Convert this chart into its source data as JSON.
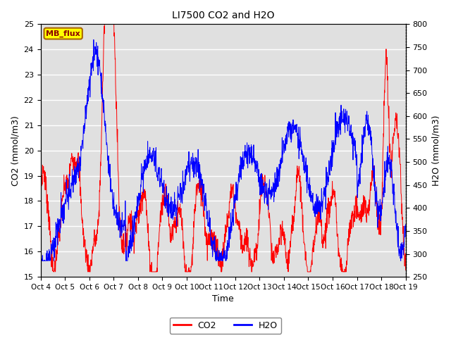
{
  "title": "LI7500 CO2 and H2O",
  "xlabel": "Time",
  "ylabel_left": "CO2 (mmol/m3)",
  "ylabel_right": "H2O (mmol/m3)",
  "co2_ylim": [
    15.0,
    25.0
  ],
  "h2o_ylim": [
    250,
    800
  ],
  "co2_yticks": [
    15.0,
    16.0,
    17.0,
    18.0,
    19.0,
    20.0,
    21.0,
    22.0,
    23.0,
    24.0,
    25.0
  ],
  "h2o_yticks": [
    250,
    300,
    350,
    400,
    450,
    500,
    550,
    600,
    650,
    700,
    750,
    800
  ],
  "x_tick_labels": [
    "Oct 4",
    "Oct 5",
    "Oct 6",
    "Oct 7",
    "Oct 8",
    "Oct 9",
    "Oct 10",
    "Oct 11",
    "Oct 12",
    "Oct 13",
    "Oct 14",
    "Oct 15",
    "Oct 16",
    "Oct 17",
    "Oct 18",
    "Oct 19"
  ],
  "co2_color": "#ff0000",
  "h2o_color": "#0000ff",
  "background_color": "#ffffff",
  "plot_bg_color": "#e0e0e0",
  "grid_color": "#ffffff",
  "annotation_text": "MB_flux",
  "annotation_bg": "#ffff00",
  "annotation_border": "#aa6600",
  "figsize": [
    6.4,
    4.8
  ],
  "dpi": 100
}
